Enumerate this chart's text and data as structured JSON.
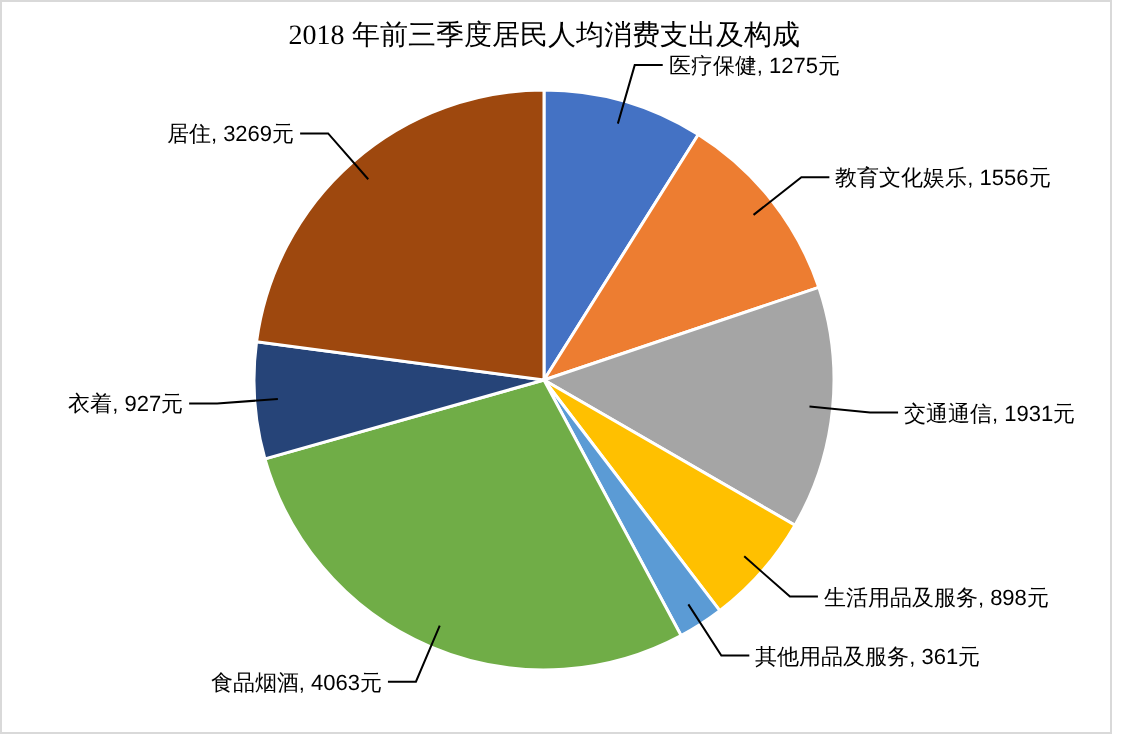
{
  "chart_data": {
    "type": "pie",
    "title": "2018 年前三季度居民人均消费支出及构成",
    "categories": [
      "医疗保健",
      "教育文化娱乐",
      "交通通信",
      "生活用品及服务",
      "其他用品及服务",
      "食品烟酒",
      "衣着",
      "居住"
    ],
    "values": [
      1275,
      1556,
      1931,
      898,
      361,
      4063,
      927,
      3269
    ],
    "value_labels": [
      "1275元",
      "1556元",
      "1931元",
      "898元",
      "361元",
      "4063元",
      "927元",
      "3269元"
    ],
    "colors": [
      "#4472c4",
      "#ed7d31",
      "#a5a5a5",
      "#ffc000",
      "#5b9bd5",
      "#70ad47",
      "#264478",
      "#9e480e"
    ]
  }
}
